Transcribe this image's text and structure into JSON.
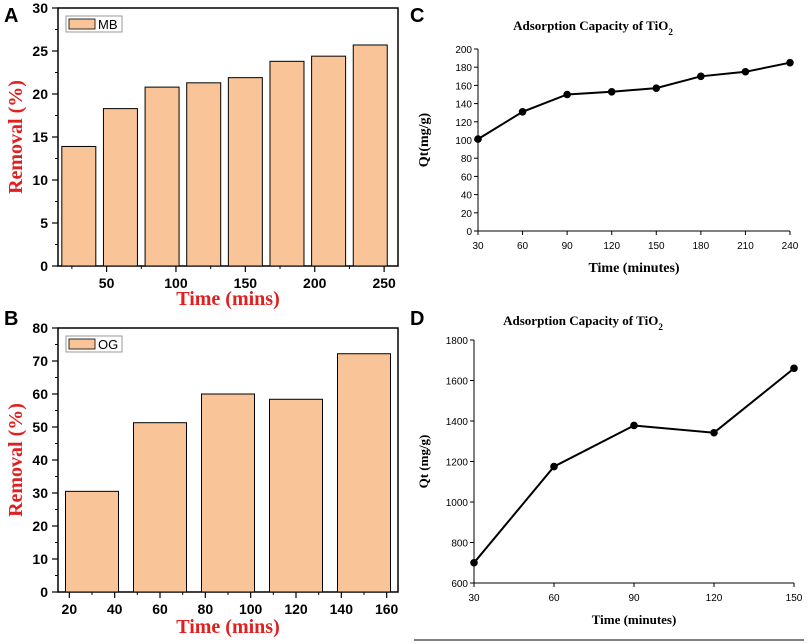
{
  "colors": {
    "bar": "#f9c497",
    "bar_stroke": "#000000",
    "axis_title_red": "#e02020",
    "line": "#000000"
  },
  "chart_data": [
    {
      "panel": "A",
      "type": "bar",
      "legend": "MB",
      "xlabel": "Time (mins)",
      "ylabel": "Removal (%)",
      "x": [
        30,
        60,
        90,
        120,
        150,
        180,
        210,
        240
      ],
      "values": [
        13.9,
        18.3,
        20.8,
        21.3,
        21.9,
        23.8,
        24.4,
        25.7
      ],
      "xticks": [
        50,
        100,
        150,
        200,
        250
      ],
      "xlim": [
        15,
        260
      ],
      "ylim": [
        0,
        30
      ],
      "yticks": [
        0,
        5,
        10,
        15,
        20,
        25,
        30
      ]
    },
    {
      "panel": "B",
      "type": "bar",
      "legend": "OG",
      "xlabel": "Time (mins)",
      "ylabel": "Removal (%)",
      "x": [
        30,
        60,
        90,
        120,
        150
      ],
      "values": [
        30.5,
        51.3,
        60.0,
        58.4,
        72.2
      ],
      "xticks": [
        20,
        40,
        60,
        80,
        100,
        120,
        140,
        160
      ],
      "xlim": [
        15,
        165
      ],
      "ylim": [
        0,
        80
      ],
      "yticks": [
        0,
        10,
        20,
        30,
        40,
        50,
        60,
        70,
        80
      ]
    },
    {
      "panel": "C",
      "type": "line",
      "title_main": "Adsorption Capacity of TiO",
      "title_sub": "2",
      "xlabel": "Time (minutes)",
      "ylabel": "Qt(mg/g)",
      "x": [
        30,
        60,
        90,
        120,
        150,
        180,
        210,
        240
      ],
      "values": [
        101,
        131,
        150,
        153,
        157,
        170,
        175,
        185
      ],
      "xticks": [
        30,
        60,
        90,
        120,
        150,
        180,
        210,
        240
      ],
      "xlim": [
        30,
        240
      ],
      "ylim": [
        0,
        200
      ],
      "yticks": [
        0,
        20,
        40,
        60,
        80,
        100,
        120,
        140,
        160,
        180,
        200
      ]
    },
    {
      "panel": "D",
      "type": "line",
      "title_main": "Adsorption Capacity of TiO",
      "title_sub": "2",
      "xlabel": "Time (minutes)",
      "ylabel": "Qt (mg/g)",
      "x": [
        30,
        60,
        90,
        120,
        150
      ],
      "values": [
        700,
        1175,
        1378,
        1342,
        1660
      ],
      "xticks": [
        30,
        60,
        90,
        120,
        150
      ],
      "xlim": [
        30,
        150
      ],
      "ylim": [
        600,
        1800
      ],
      "yticks": [
        600,
        800,
        1000,
        1200,
        1400,
        1600,
        1800
      ]
    }
  ]
}
